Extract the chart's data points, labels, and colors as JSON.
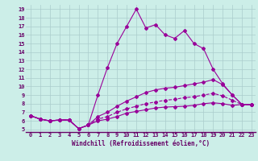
{
  "xlabel": "Windchill (Refroidissement éolien,°C)",
  "bg_color": "#cceee8",
  "grid_color": "#aacccc",
  "line_color": "#990099",
  "xlim_min": -0.5,
  "xlim_max": 23.4,
  "ylim_min": 4.7,
  "ylim_max": 19.5,
  "xticks": [
    0,
    1,
    2,
    3,
    4,
    5,
    6,
    7,
    8,
    9,
    10,
    11,
    12,
    13,
    14,
    15,
    16,
    17,
    18,
    19,
    20,
    21,
    22,
    23
  ],
  "yticks": [
    5,
    6,
    7,
    8,
    9,
    10,
    11,
    12,
    13,
    14,
    15,
    16,
    17,
    18,
    19
  ],
  "lines": [
    {
      "x": [
        0,
        1,
        2,
        3,
        4,
        5,
        6,
        7,
        8,
        9,
        10,
        11,
        12,
        13,
        14,
        15,
        16,
        17,
        18,
        19,
        20,
        21,
        22,
        23
      ],
      "y": [
        6.6,
        6.2,
        6.0,
        6.1,
        6.1,
        5.1,
        5.5,
        9.0,
        12.2,
        15.0,
        17.0,
        19.0,
        16.8,
        17.2,
        16.0,
        15.6,
        16.5,
        15.0,
        14.4,
        12.0,
        10.3,
        9.0,
        7.9,
        7.9
      ],
      "style": "-",
      "marker": "D",
      "markersize": 2.0,
      "lw": 0.8
    },
    {
      "x": [
        0,
        1,
        2,
        3,
        4,
        5,
        6,
        7,
        8,
        9,
        10,
        11,
        12,
        13,
        14,
        15,
        16,
        17,
        18,
        19,
        20,
        21,
        22,
        23
      ],
      "y": [
        6.6,
        6.2,
        6.0,
        6.1,
        6.1,
        5.1,
        5.5,
        6.5,
        7.0,
        7.7,
        8.3,
        8.8,
        9.3,
        9.6,
        9.8,
        9.9,
        10.1,
        10.3,
        10.5,
        10.8,
        10.2,
        9.0,
        7.9,
        7.9
      ],
      "style": "-",
      "marker": "D",
      "markersize": 2.0,
      "lw": 0.8
    },
    {
      "x": [
        0,
        1,
        2,
        3,
        4,
        5,
        6,
        7,
        8,
        9,
        10,
        11,
        12,
        13,
        14,
        15,
        16,
        17,
        18,
        19,
        20,
        21,
        22,
        23
      ],
      "y": [
        6.6,
        6.2,
        6.0,
        6.1,
        6.1,
        5.1,
        5.5,
        6.2,
        6.5,
        7.0,
        7.4,
        7.7,
        8.0,
        8.2,
        8.4,
        8.5,
        8.7,
        8.8,
        9.0,
        9.2,
        8.9,
        8.4,
        7.9,
        7.9
      ],
      "style": "--",
      "marker": "D",
      "markersize": 2.0,
      "lw": 0.8
    },
    {
      "x": [
        0,
        1,
        2,
        3,
        4,
        5,
        6,
        7,
        8,
        9,
        10,
        11,
        12,
        13,
        14,
        15,
        16,
        17,
        18,
        19,
        20,
        21,
        22,
        23
      ],
      "y": [
        6.6,
        6.2,
        6.0,
        6.1,
        6.1,
        5.1,
        5.5,
        6.0,
        6.2,
        6.5,
        6.9,
        7.1,
        7.3,
        7.5,
        7.6,
        7.65,
        7.7,
        7.8,
        8.0,
        8.1,
        8.0,
        7.8,
        7.9,
        7.9
      ],
      "style": "-",
      "marker": "D",
      "markersize": 2.0,
      "lw": 0.8
    }
  ],
  "xlabel_fontsize": 5.5,
  "tick_fontsize": 5.0
}
